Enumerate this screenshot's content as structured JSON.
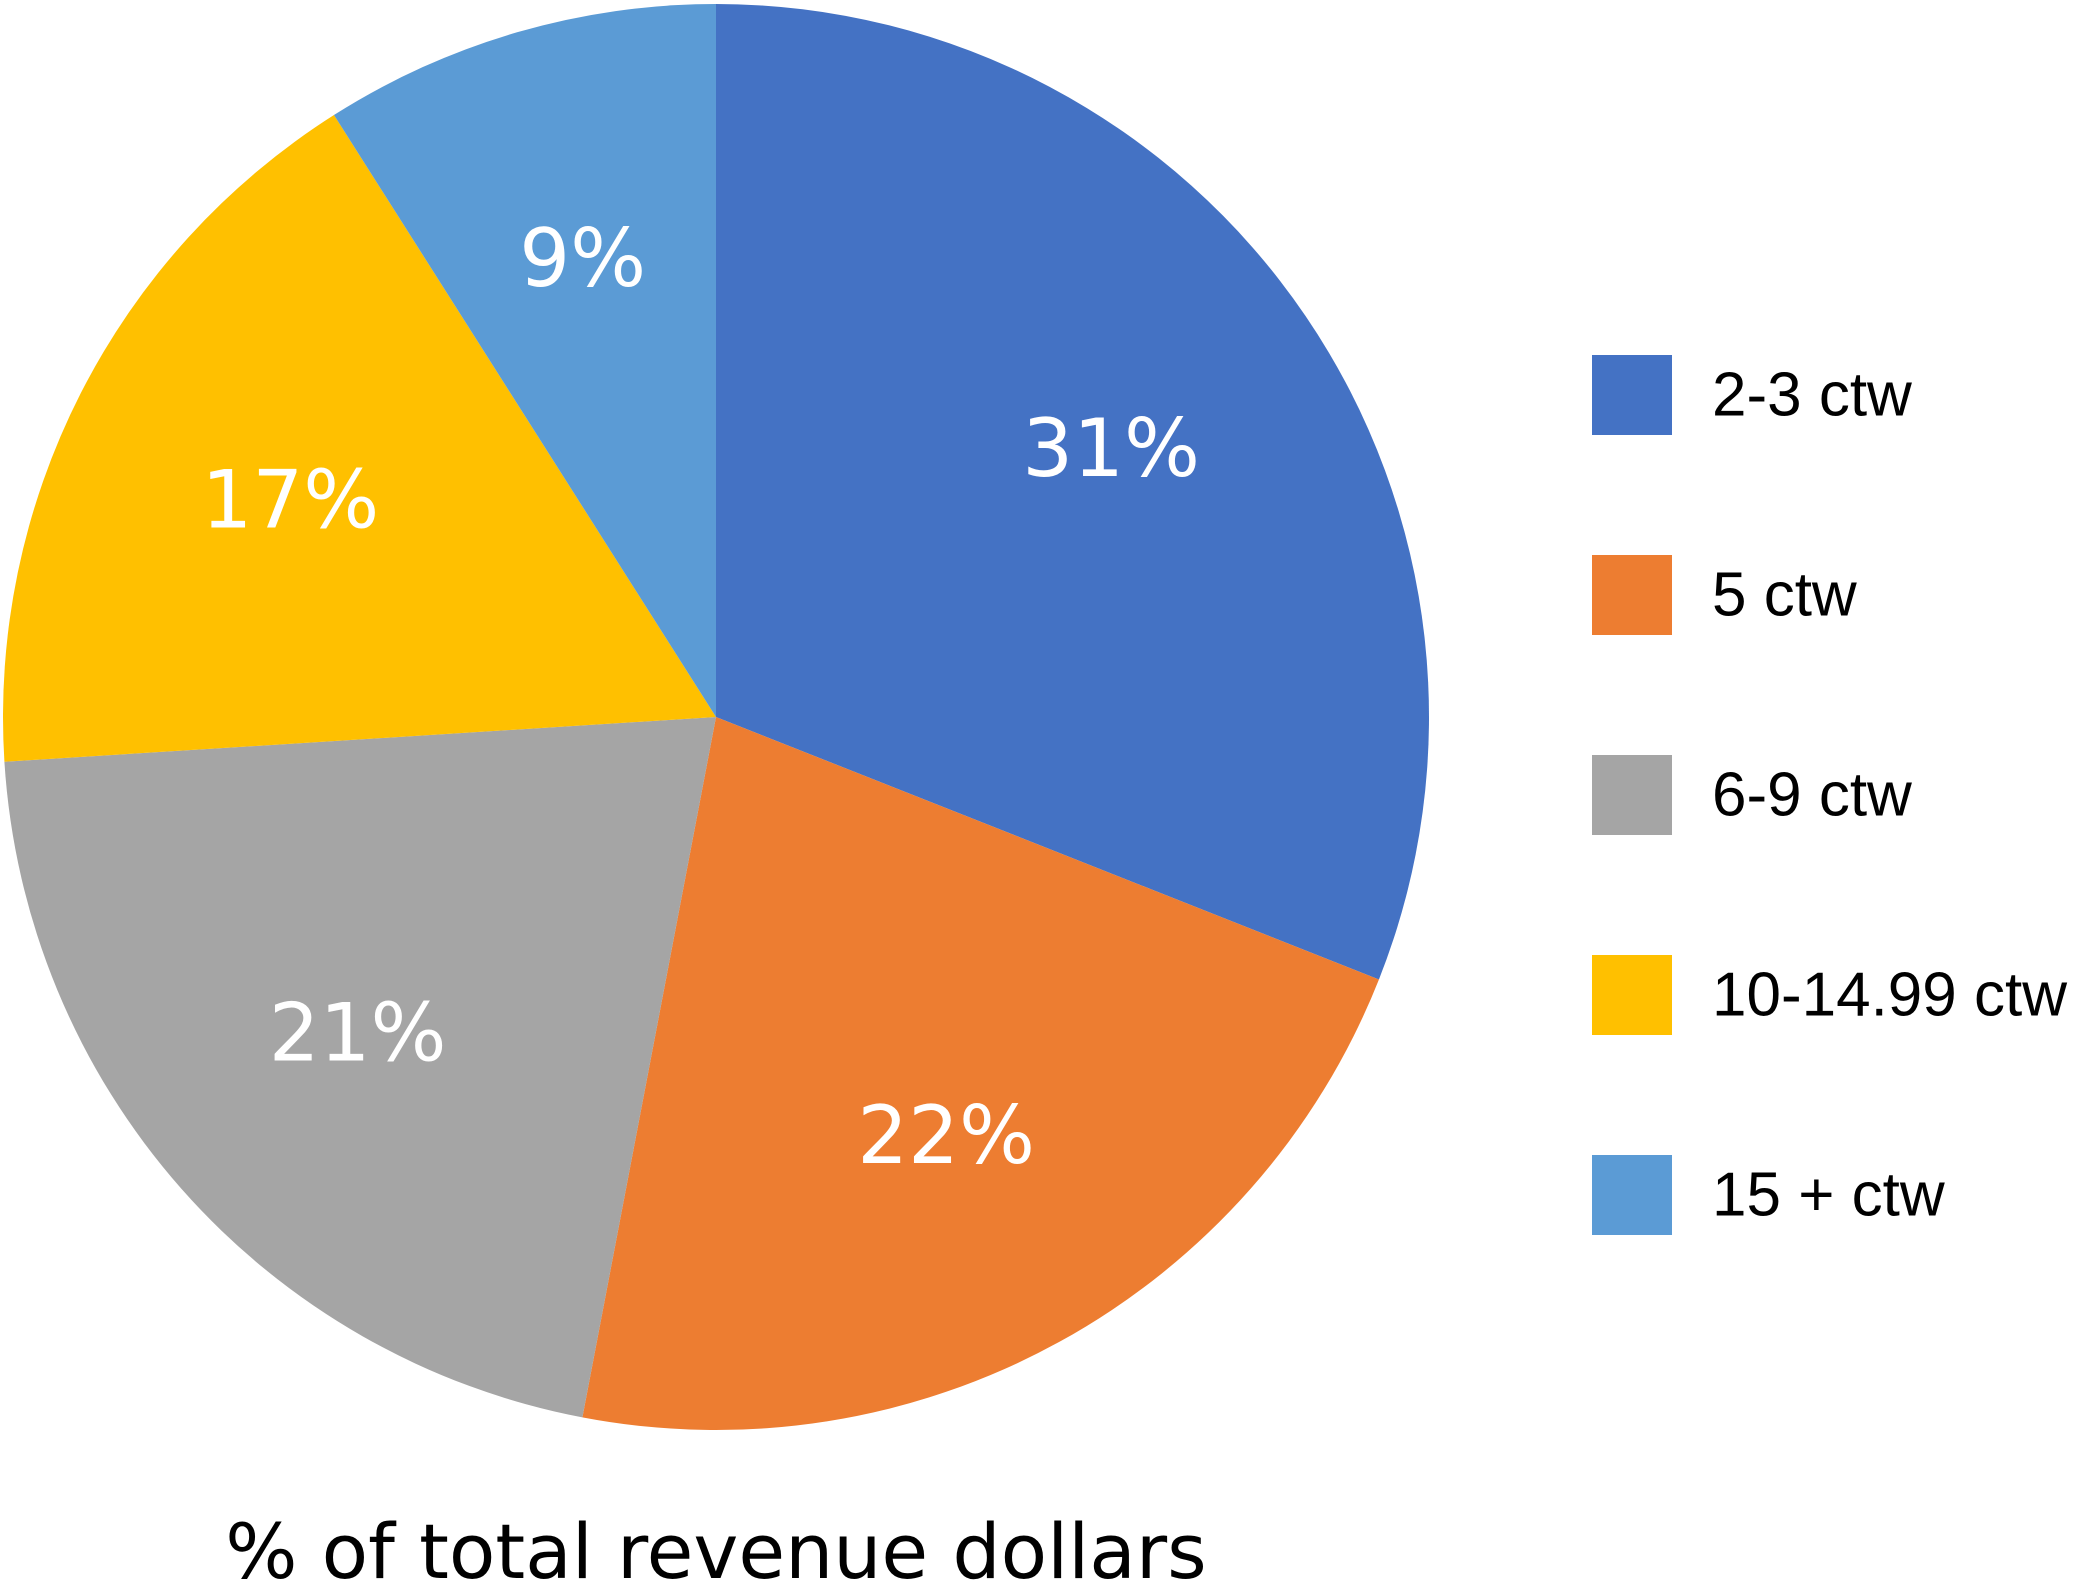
{
  "chart_data": {
    "type": "pie",
    "title": "% of total revenue dollars",
    "legend_position": "right",
    "start_angle_deg": 0,
    "direction": "clockwise",
    "slices": [
      {
        "name": "2-3 ctw",
        "value": 31,
        "label": "31%",
        "color": "#4472C4"
      },
      {
        "name": "5 ctw",
        "value": 22,
        "label": "22%",
        "color": "#ED7D31"
      },
      {
        "name": "6-9 ctw",
        "value": 21,
        "label": "21%",
        "color": "#A5A5A5"
      },
      {
        "name": "10-14.99 ctw",
        "value": 17,
        "label": "17%",
        "color": "#FFC000"
      },
      {
        "name": "15 + ctw",
        "value": 9,
        "label": "9%",
        "color": "#5B9BD5"
      }
    ]
  }
}
